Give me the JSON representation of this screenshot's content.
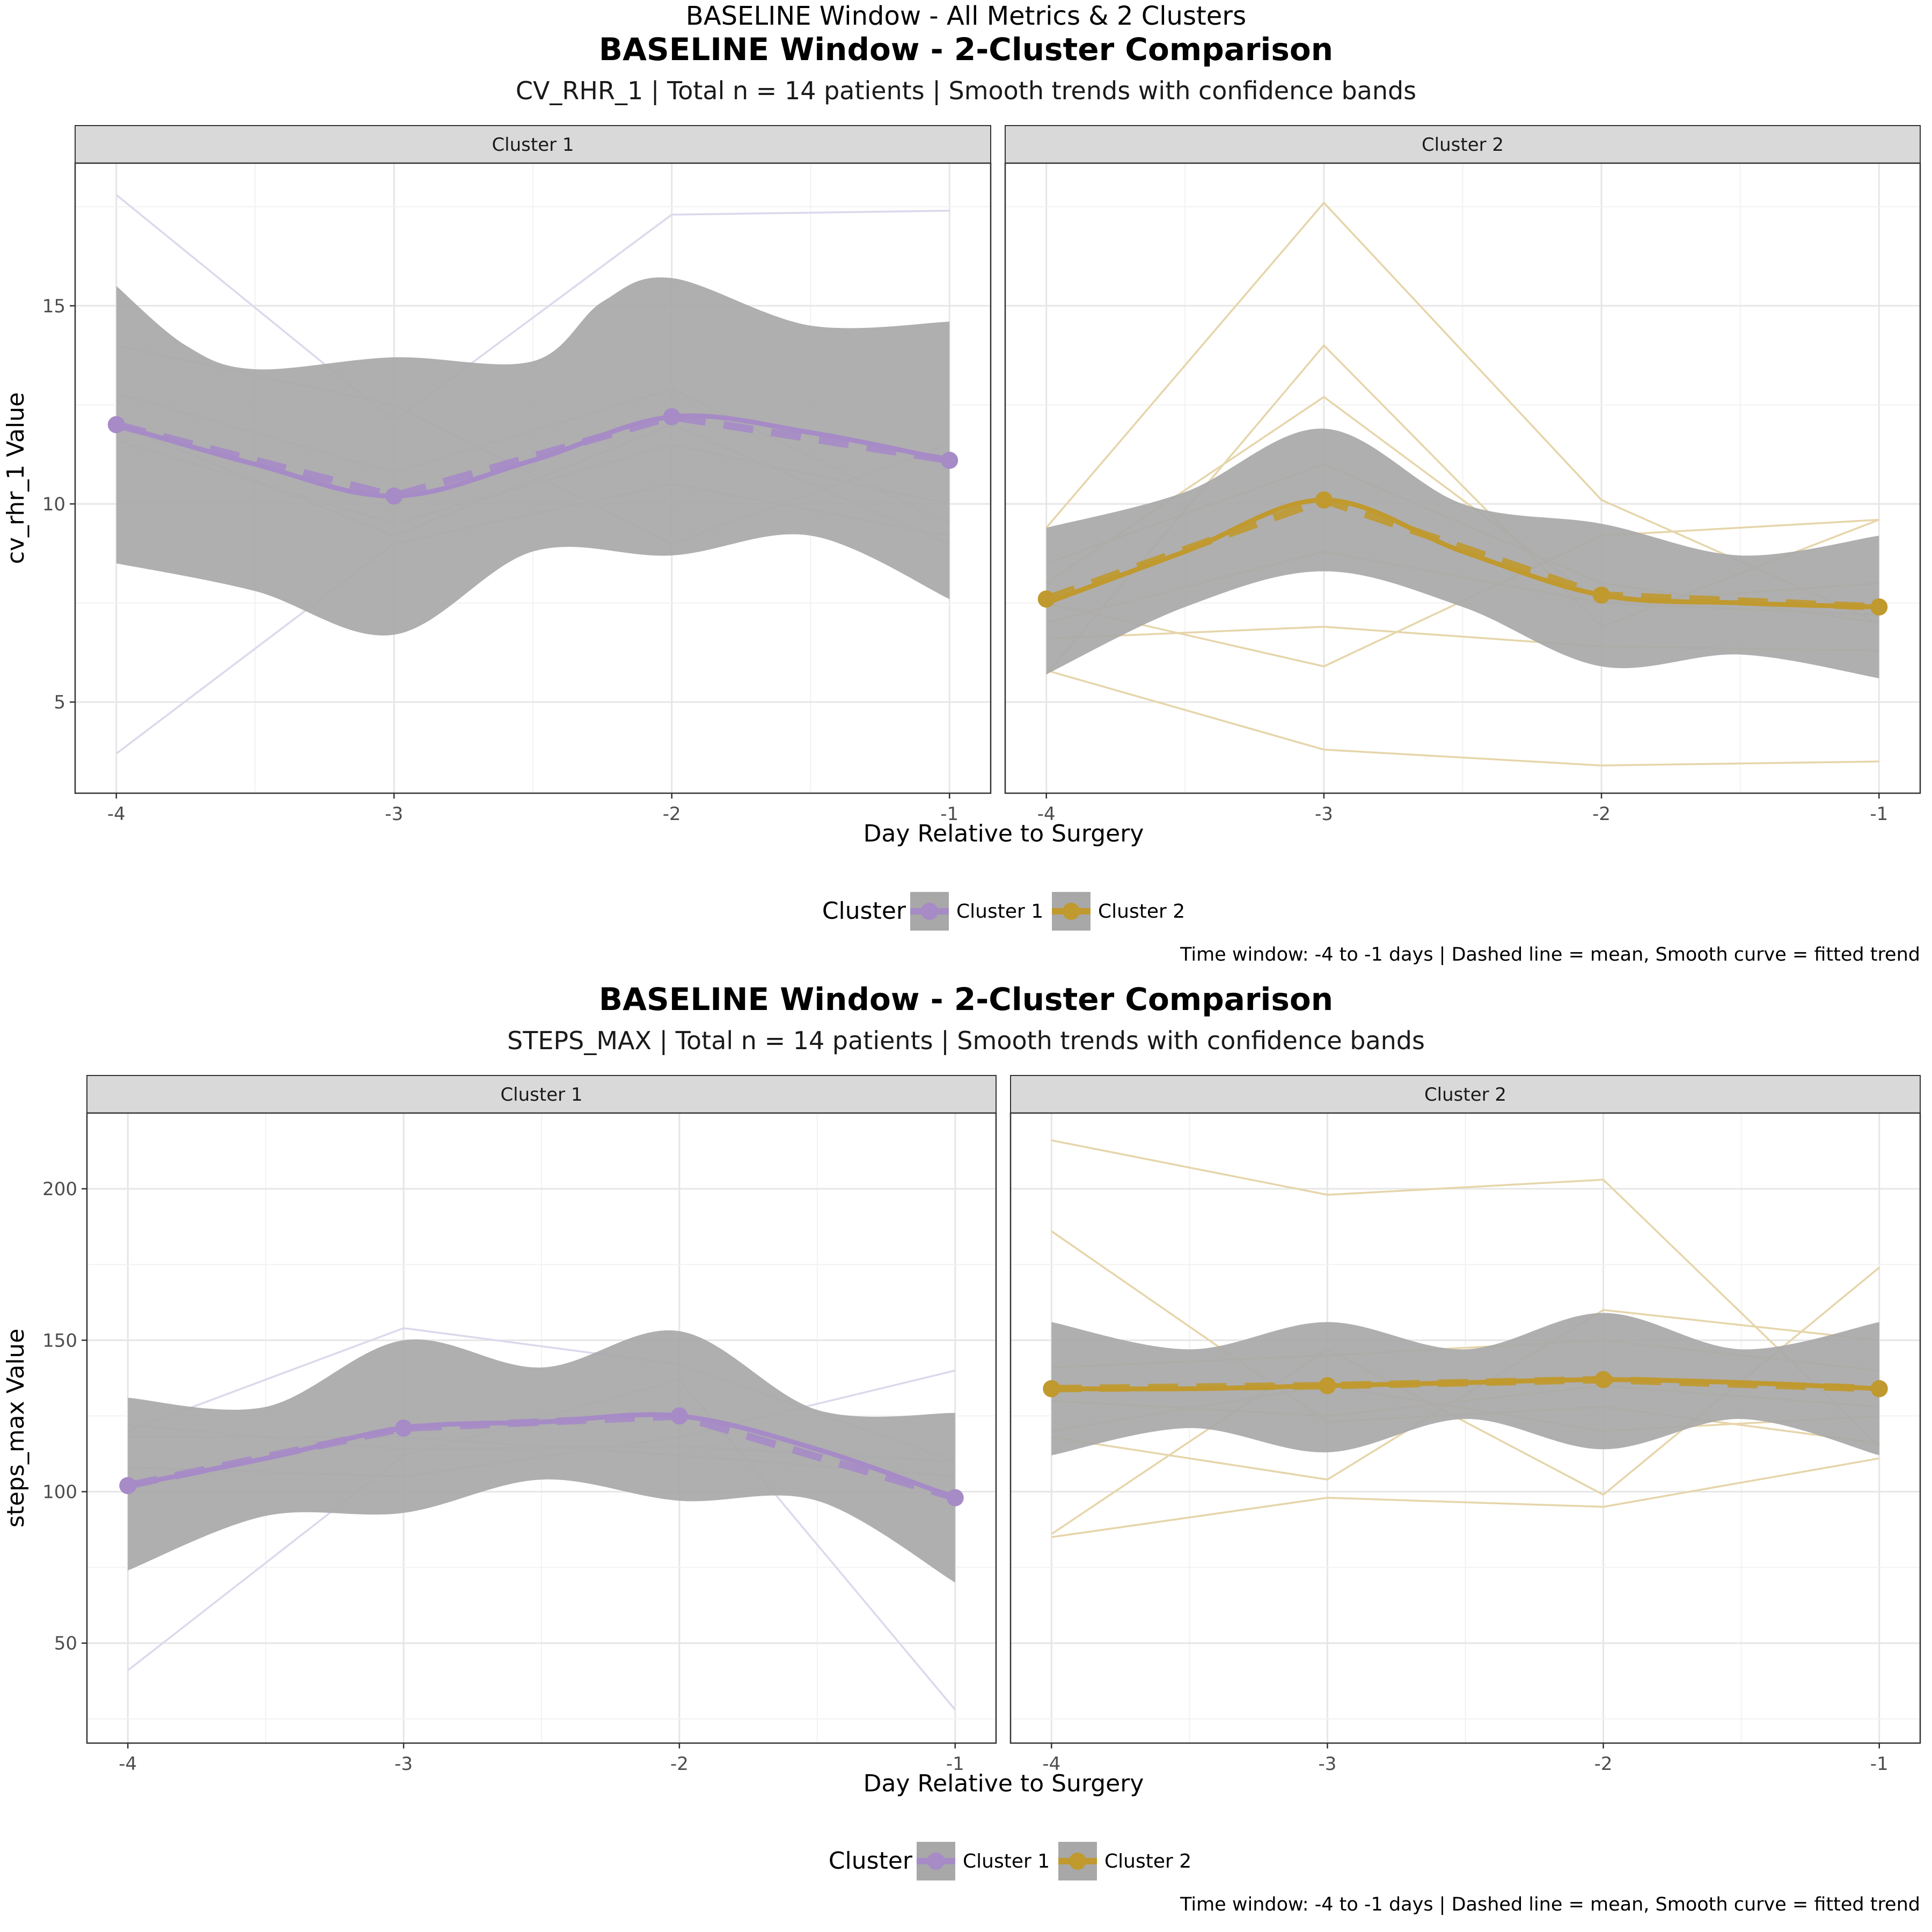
{
  "figure": {
    "title": "BASELINE Window - All Metrics & 2 Clusters",
    "colors": {
      "cluster_1": "#A68BC7",
      "cluster_2": "#C0992F",
      "band": "#A8A8A8",
      "strip": "#D9D9D9",
      "cluster_1_patient": "#DCD8EC",
      "cluster_2_patient": "#E6D5AA"
    }
  },
  "chart_data": [
    {
      "type": "line",
      "title": "BASELINE Window - 2-Cluster Comparison",
      "subtitle": "CV_RHR_1 | Total n = 14 patients | Smooth trends with confidence bands",
      "xlabel": "Day Relative to Surgery",
      "ylabel": "cv_rhr_1 Value",
      "x": [
        -4,
        -3,
        -2,
        -1
      ],
      "x_ticks": [
        "-4",
        "-3",
        "-2",
        "-1"
      ],
      "y_ticks": [
        5,
        10,
        15
      ],
      "ylim": [
        2.7,
        18.6
      ],
      "grid": true,
      "legend": {
        "title": "Cluster",
        "position": "bottom",
        "entries": [
          "Cluster 1",
          "Cluster 2"
        ]
      },
      "caption": "Time window: -4 to -1 days | Dashed line = mean, Smooth curve = fitted trend",
      "panels": [
        {
          "strip": "Cluster 1",
          "mean": [
            12.0,
            10.2,
            12.2,
            11.1
          ],
          "smooth": [
            [
              -4,
              12.0
            ],
            [
              -3.5,
              11.0
            ],
            [
              -3,
              10.2
            ],
            [
              -2.5,
              11.1
            ],
            [
              -2,
              12.2
            ],
            [
              -1.5,
              11.8
            ],
            [
              -1,
              11.1
            ]
          ],
          "band_upper": [
            [
              -4,
              15.5
            ],
            [
              -3.75,
              14.0
            ],
            [
              -3.5,
              13.4
            ],
            [
              -3,
              13.7
            ],
            [
              -2.5,
              13.6
            ],
            [
              -2.25,
              15.1
            ],
            [
              -2,
              15.7
            ],
            [
              -1.5,
              14.5
            ],
            [
              -1,
              14.6
            ]
          ],
          "band_lower": [
            [
              -4,
              8.5
            ],
            [
              -3.5,
              7.8
            ],
            [
              -3,
              6.7
            ],
            [
              -2.5,
              8.8
            ],
            [
              -2,
              8.7
            ],
            [
              -1.5,
              9.2
            ],
            [
              -1,
              7.6
            ]
          ],
          "patients": [
            [
              17.8,
              12.1,
              17.3,
              17.4
            ],
            [
              3.7,
              9.0,
              10.5,
              9.2
            ],
            [
              14.0,
              12.5,
              9.0,
              11.5
            ],
            [
              12.8,
              10.8,
              12.9,
              9.5
            ],
            [
              11.6,
              9.5,
              11.5,
              10.0
            ],
            [
              12.0,
              9.2,
              12.0,
              9.0
            ]
          ]
        },
        {
          "strip": "Cluster 2",
          "mean": [
            7.6,
            10.1,
            7.7,
            7.4
          ],
          "smooth": [
            [
              -4,
              7.5
            ],
            [
              -3.5,
              8.8
            ],
            [
              -3,
              10.1
            ],
            [
              -2.5,
              8.8
            ],
            [
              -2,
              7.7
            ],
            [
              -1.5,
              7.5
            ],
            [
              -1,
              7.4
            ]
          ],
          "band_upper": [
            [
              -4,
              9.4
            ],
            [
              -3.5,
              10.3
            ],
            [
              -3,
              11.9
            ],
            [
              -2.5,
              10.0
            ],
            [
              -2,
              9.5
            ],
            [
              -1.5,
              8.7
            ],
            [
              -1,
              9.2
            ]
          ],
          "band_lower": [
            [
              -4,
              5.7
            ],
            [
              -3.5,
              7.4
            ],
            [
              -3,
              8.3
            ],
            [
              -2.5,
              7.4
            ],
            [
              -2,
              5.9
            ],
            [
              -1.5,
              6.2
            ],
            [
              -1,
              5.6
            ]
          ],
          "patients": [
            [
              9.4,
              17.6,
              10.1,
              7.0
            ],
            [
              5.7,
              14.0,
              6.9,
              9.6
            ],
            [
              5.8,
              3.8,
              3.4,
              3.5
            ],
            [
              8.0,
              12.7,
              7.5,
              8.0
            ],
            [
              6.6,
              6.9,
              6.4,
              6.3
            ],
            [
              7.5,
              5.9,
              9.2,
              9.6
            ],
            [
              8.5,
              11.0,
              8.0,
              7.0
            ],
            [
              7.0,
              8.8,
              7.5,
              7.2
            ]
          ]
        }
      ]
    },
    {
      "type": "line",
      "title": "BASELINE Window - 2-Cluster Comparison",
      "subtitle": "STEPS_MAX | Total n = 14 patients | Smooth trends with confidence bands",
      "xlabel": "Day Relative to Surgery",
      "ylabel": "steps_max Value",
      "x": [
        -4,
        -3,
        -2,
        -1
      ],
      "x_ticks": [
        "-4",
        "-3",
        "-2",
        "-1"
      ],
      "y_ticks": [
        50,
        100,
        150,
        200
      ],
      "ylim": [
        17,
        225
      ],
      "grid": true,
      "legend": {
        "title": "Cluster",
        "position": "bottom",
        "entries": [
          "Cluster 1",
          "Cluster 2"
        ]
      },
      "caption": "Time window: -4 to -1 days | Dashed line = mean, Smooth curve = fitted trend",
      "panels": [
        {
          "strip": "Cluster 1",
          "mean": [
            102,
            121,
            125,
            98
          ],
          "smooth": [
            [
              -4,
              102
            ],
            [
              -3.5,
              111
            ],
            [
              -3,
              121
            ],
            [
              -2.5,
              123
            ],
            [
              -2,
              125
            ],
            [
              -1.5,
              114
            ],
            [
              -1,
              98
            ]
          ],
          "band_upper": [
            [
              -4,
              131
            ],
            [
              -3.5,
              128
            ],
            [
              -3,
              150
            ],
            [
              -2.5,
              141
            ],
            [
              -2,
              153
            ],
            [
              -1.5,
              127
            ],
            [
              -1,
              126
            ]
          ],
          "band_lower": [
            [
              -4,
              74
            ],
            [
              -3.5,
              92
            ],
            [
              -3,
              93
            ],
            [
              -2.5,
              104
            ],
            [
              -2,
              97
            ],
            [
              -1.5,
              97
            ],
            [
              -1,
              70
            ]
          ],
          "patients": [
            [
              41,
              112,
              137,
              28
            ],
            [
              120,
              154,
              142,
              110
            ],
            [
              108,
              105,
              118,
              140
            ],
            [
              122,
              114,
              115,
              110
            ],
            [
              118,
              118,
              112,
              105
            ]
          ]
        },
        {
          "strip": "Cluster 2",
          "mean": [
            134,
            135,
            137,
            134
          ],
          "smooth": [
            [
              -4,
              134
            ],
            [
              -3.5,
              134
            ],
            [
              -3,
              135
            ],
            [
              -2.5,
              136
            ],
            [
              -2,
              137
            ],
            [
              -1.5,
              136
            ],
            [
              -1,
              134
            ]
          ],
          "band_upper": [
            [
              -4,
              156
            ],
            [
              -3.5,
              147
            ],
            [
              -3,
              156
            ],
            [
              -2.5,
              147
            ],
            [
              -2,
              159
            ],
            [
              -1.5,
              147
            ],
            [
              -1,
              156
            ]
          ],
          "band_lower": [
            [
              -4,
              112
            ],
            [
              -3.5,
              121
            ],
            [
              -3,
              113
            ],
            [
              -2.5,
              124
            ],
            [
              -2,
              114
            ],
            [
              -1.5,
              124
            ],
            [
              -1,
              112
            ]
          ],
          "patients": [
            [
              216,
              198,
              203,
              115
            ],
            [
              186,
              123,
              128,
              116
            ],
            [
              85,
              98,
              95,
              111
            ],
            [
              86,
              147,
              99,
              174
            ],
            [
              118,
              104,
              160,
              150
            ],
            [
              141,
              145,
              150,
              140
            ],
            [
              120,
              135,
              120,
              125
            ],
            [
              130,
              125,
              135,
              128
            ]
          ]
        }
      ]
    }
  ]
}
